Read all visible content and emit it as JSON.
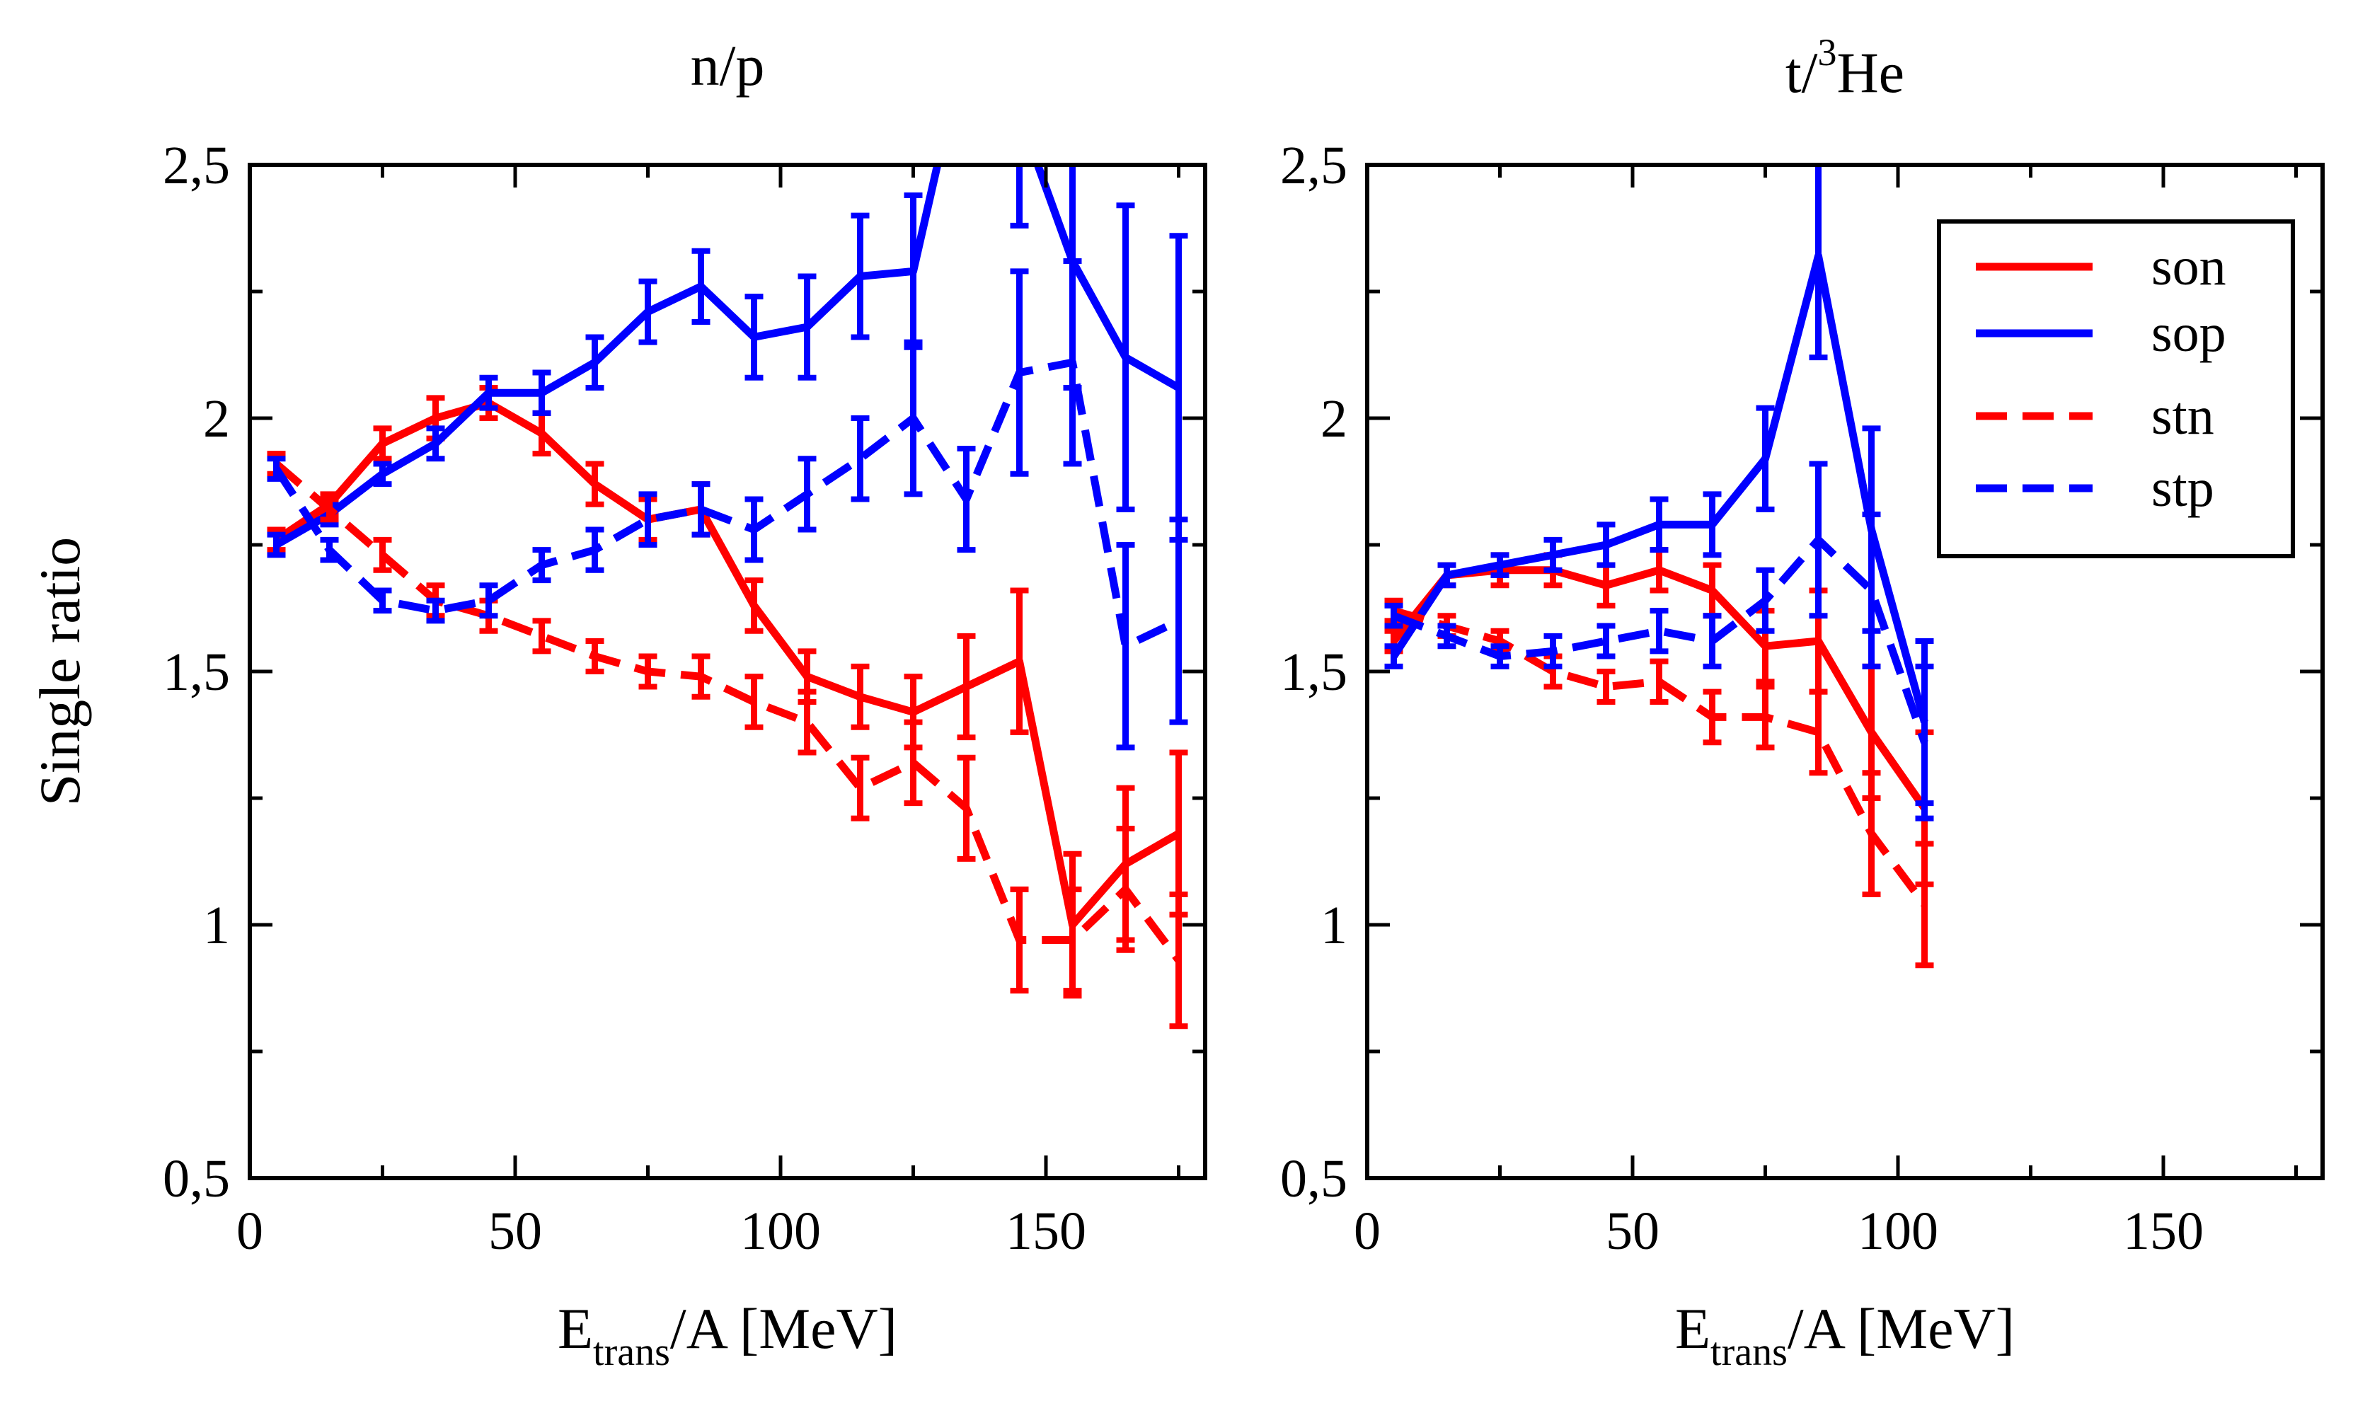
{
  "chart_data": [
    {
      "type": "line",
      "title": "n/p",
      "title_parts": {
        "pre_sup": "",
        "sup": "",
        "main": "n/p"
      },
      "xlabel": {
        "main": "E",
        "sub": "trans",
        "rest": "/A [MeV]"
      },
      "ylabel": "Single ratio",
      "xlim": [
        0,
        180
      ],
      "ylim": [
        0.5,
        2.5
      ],
      "x_ticks": [
        0,
        50,
        100,
        150
      ],
      "y_ticks": [
        0.5,
        1,
        1.5,
        2,
        2.5
      ],
      "x_tick_labels": [
        "0",
        "50",
        "100",
        "150"
      ],
      "y_tick_labels": [
        "0,5",
        "1",
        "1,5",
        "2",
        "2,5"
      ],
      "grid": false,
      "series": [
        {
          "name": "son",
          "color": "#ff0000",
          "dash": "solid",
          "x": [
            5,
            15,
            25,
            35,
            45,
            55,
            65,
            75,
            85,
            95,
            105,
            115,
            125,
            135,
            145,
            155,
            165,
            175
          ],
          "y": [
            1.76,
            1.83,
            1.95,
            2.0,
            2.03,
            1.97,
            1.87,
            1.8,
            1.82,
            1.63,
            1.49,
            1.45,
            1.42,
            1.47,
            1.52,
            1.0,
            1.12,
            1.18
          ],
          "err": [
            0.02,
            0.02,
            0.03,
            0.04,
            0.03,
            0.04,
            0.04,
            0.04,
            0.05,
            0.05,
            0.05,
            0.06,
            0.07,
            0.1,
            0.14,
            0.14,
            0.15,
            0.16
          ]
        },
        {
          "name": "sop",
          "color": "#0000ff",
          "dash": "solid",
          "x": [
            5,
            15,
            25,
            35,
            45,
            55,
            65,
            75,
            85,
            95,
            105,
            115,
            125,
            135,
            145,
            155,
            165,
            175
          ],
          "y": [
            1.75,
            1.81,
            1.89,
            1.95,
            2.05,
            2.05,
            2.11,
            2.21,
            2.26,
            2.16,
            2.18,
            2.28,
            2.29,
            2.75,
            2.6,
            2.31,
            2.12,
            2.06
          ],
          "err": [
            0.02,
            0.02,
            0.02,
            0.03,
            0.03,
            0.04,
            0.05,
            0.06,
            0.07,
            0.08,
            0.1,
            0.12,
            0.15,
            0.2,
            0.22,
            0.25,
            0.3,
            0.3
          ]
        },
        {
          "name": "stn",
          "color": "#ff0000",
          "dash": "dashed",
          "x": [
            5,
            15,
            25,
            35,
            45,
            55,
            65,
            75,
            85,
            95,
            105,
            115,
            125,
            135,
            145,
            155,
            165,
            175
          ],
          "y": [
            1.91,
            1.82,
            1.73,
            1.64,
            1.61,
            1.57,
            1.53,
            1.5,
            1.49,
            1.44,
            1.4,
            1.27,
            1.32,
            1.23,
            0.97,
            0.97,
            1.07,
            0.93
          ],
          "err": [
            0.02,
            0.02,
            0.03,
            0.03,
            0.03,
            0.03,
            0.03,
            0.03,
            0.04,
            0.05,
            0.06,
            0.06,
            0.08,
            0.1,
            0.1,
            0.1,
            0.12,
            0.13
          ]
        },
        {
          "name": "stp",
          "color": "#0000ff",
          "dash": "dashed",
          "x": [
            5,
            15,
            25,
            35,
            45,
            55,
            65,
            75,
            85,
            95,
            105,
            115,
            125,
            135,
            145,
            155,
            165,
            175
          ],
          "y": [
            1.9,
            1.74,
            1.64,
            1.62,
            1.64,
            1.71,
            1.74,
            1.8,
            1.82,
            1.78,
            1.85,
            1.92,
            2.0,
            1.84,
            2.09,
            2.11,
            1.55,
            1.6
          ],
          "err": [
            0.02,
            0.02,
            0.02,
            0.02,
            0.03,
            0.03,
            0.04,
            0.05,
            0.05,
            0.06,
            0.07,
            0.08,
            0.15,
            0.1,
            0.2,
            0.2,
            0.2,
            0.2
          ]
        }
      ]
    },
    {
      "type": "line",
      "title": "t/3He",
      "title_parts": {
        "pre_sup": "t/",
        "sup": "3",
        "main": "He"
      },
      "xlabel": {
        "main": "E",
        "sub": "trans",
        "rest": "/A [MeV]"
      },
      "ylabel": "",
      "xlim": [
        0,
        180
      ],
      "ylim": [
        0.5,
        2.5
      ],
      "x_ticks": [
        0,
        50,
        100,
        150
      ],
      "y_ticks": [
        0.5,
        1,
        1.5,
        2,
        2.5
      ],
      "x_tick_labels": [
        "0",
        "50",
        "100",
        "150"
      ],
      "y_tick_labels": [
        "0,5",
        "1",
        "1,5",
        "2",
        "2,5"
      ],
      "grid": false,
      "legend": {
        "position": "top-right",
        "entries": [
          "son",
          "sop",
          "stn",
          "stp"
        ]
      },
      "series": [
        {
          "name": "son",
          "color": "#ff0000",
          "dash": "solid",
          "x": [
            5,
            15,
            25,
            35,
            45,
            55,
            65,
            75,
            85,
            95,
            105
          ],
          "y": [
            1.56,
            1.69,
            1.7,
            1.7,
            1.67,
            1.7,
            1.66,
            1.55,
            1.56,
            1.38,
            1.23
          ],
          "err": [
            0.02,
            0.02,
            0.03,
            0.03,
            0.04,
            0.04,
            0.05,
            0.07,
            0.1,
            0.13,
            0.15
          ]
        },
        {
          "name": "sop",
          "color": "#0000ff",
          "dash": "solid",
          "x": [
            5,
            15,
            25,
            35,
            45,
            55,
            65,
            75,
            85,
            95,
            105
          ],
          "y": [
            1.53,
            1.69,
            1.71,
            1.73,
            1.75,
            1.79,
            1.79,
            1.92,
            2.32,
            1.78,
            1.4
          ],
          "err": [
            0.02,
            0.02,
            0.02,
            0.03,
            0.04,
            0.05,
            0.06,
            0.1,
            0.2,
            0.2,
            0.16
          ]
        },
        {
          "name": "stn",
          "color": "#ff0000",
          "dash": "dashed",
          "x": [
            5,
            15,
            25,
            35,
            45,
            55,
            65,
            75,
            85,
            95,
            105
          ],
          "y": [
            1.62,
            1.59,
            1.56,
            1.5,
            1.47,
            1.48,
            1.41,
            1.41,
            1.38,
            1.18,
            1.04
          ],
          "err": [
            0.02,
            0.02,
            0.02,
            0.03,
            0.03,
            0.04,
            0.05,
            0.06,
            0.08,
            0.12,
            0.12
          ]
        },
        {
          "name": "stp",
          "color": "#0000ff",
          "dash": "dashed",
          "x": [
            5,
            15,
            25,
            35,
            45,
            55,
            65,
            75,
            85,
            95,
            105
          ],
          "y": [
            1.61,
            1.57,
            1.53,
            1.54,
            1.56,
            1.58,
            1.56,
            1.64,
            1.76,
            1.66,
            1.36
          ],
          "err": [
            0.02,
            0.02,
            0.02,
            0.03,
            0.03,
            0.04,
            0.05,
            0.06,
            0.15,
            0.15,
            0.15
          ]
        }
      ]
    }
  ]
}
